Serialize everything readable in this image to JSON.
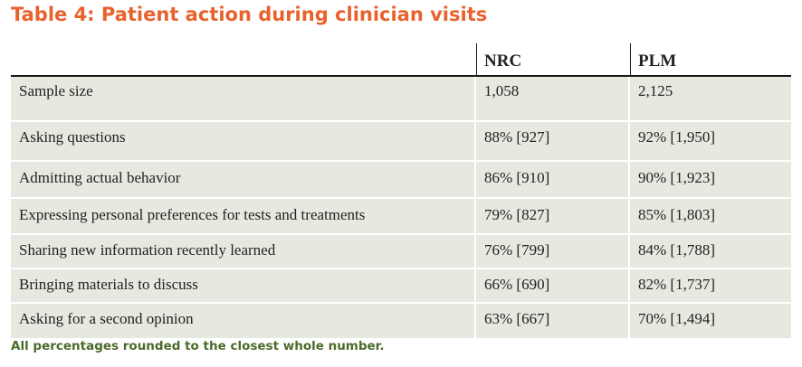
{
  "title": "Table 4: Patient action during clinician visits",
  "table": {
    "columns": [
      "",
      "NRC",
      "PLM"
    ],
    "rows": [
      {
        "label": "Sample size",
        "nrc": "1,058",
        "plm": "2,125"
      },
      {
        "label": "Asking questions",
        "nrc": "88% [927]",
        "plm": "92% [1,950]"
      },
      {
        "label": "Admitting actual behavior",
        "nrc": "86% [910]",
        "plm": "90% [1,923]"
      },
      {
        "label": "Expressing personal preferences for tests and treatments",
        "nrc": "79% [827]",
        "plm": "85% [1,803]"
      },
      {
        "label": "Sharing new information recently learned",
        "nrc": "76% [799]",
        "plm": "84% [1,788]"
      },
      {
        "label": "Bringing materials to discuss",
        "nrc": "66% [690]",
        "plm": "82% [1,737]"
      },
      {
        "label": "Asking for a second opinion",
        "nrc": "63% [667]",
        "plm": "70% [1,494]"
      }
    ]
  },
  "footnote": "All percentages rounded to the closest whole number.",
  "colors": {
    "title": "#e8622d",
    "row_background": "#e6e9df",
    "footnote": "#4a6b2a"
  }
}
